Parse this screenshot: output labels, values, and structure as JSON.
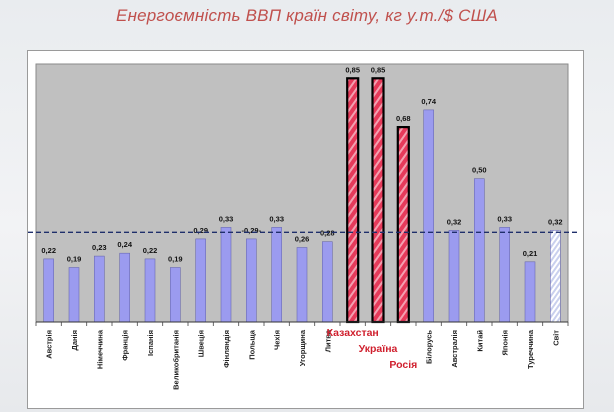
{
  "chart_data": {
    "type": "bar",
    "title": "Енергоємність ВВП країн світу, кг у.т./$ США",
    "ylim": [
      0,
      0.9
    ],
    "grid": false,
    "categories": [
      "Австрія",
      "Данія",
      "Німеччина",
      "Франція",
      "Іспанія",
      "Великобританія",
      "Швеція",
      "Фінляндія",
      "Польща",
      "Чехія",
      "Угорщина",
      "Литва",
      "Казахстан",
      "Україна",
      "Росія",
      "Білорусь",
      "Австралія",
      "Китай",
      "Японія",
      "Туреччина",
      "Світ"
    ],
    "values": [
      0.22,
      0.19,
      0.23,
      0.24,
      0.22,
      0.19,
      0.29,
      0.33,
      0.29,
      0.33,
      0.26,
      0.28,
      0.85,
      0.85,
      0.68,
      0.74,
      0.32,
      0.5,
      0.33,
      0.21,
      0.32
    ],
    "value_labels": [
      "0,22",
      "0,19",
      "0,23",
      "0,24",
      "0,22",
      "0,19",
      "0,29",
      "0,33",
      "-0,29-",
      "0,33",
      "0,26",
      "0,28",
      "0,85",
      "0,85",
      "0,68",
      "0,74",
      "0,32",
      "0,50",
      "0,33",
      "0,21",
      "0,32"
    ],
    "highlighted": [
      "Казахстан",
      "Україна",
      "Росія"
    ],
    "reference": "Світ",
    "reference_line_value": 0.32,
    "colors": {
      "bar": "#9b9bef",
      "highlight": "#e63a5a",
      "highlight_border": "#000000",
      "reference_bar": "#c9d0ee",
      "plot_area": "#c0c0c0",
      "highlight_label": "#d0202e",
      "reference_line": "#1f2f6b"
    }
  }
}
